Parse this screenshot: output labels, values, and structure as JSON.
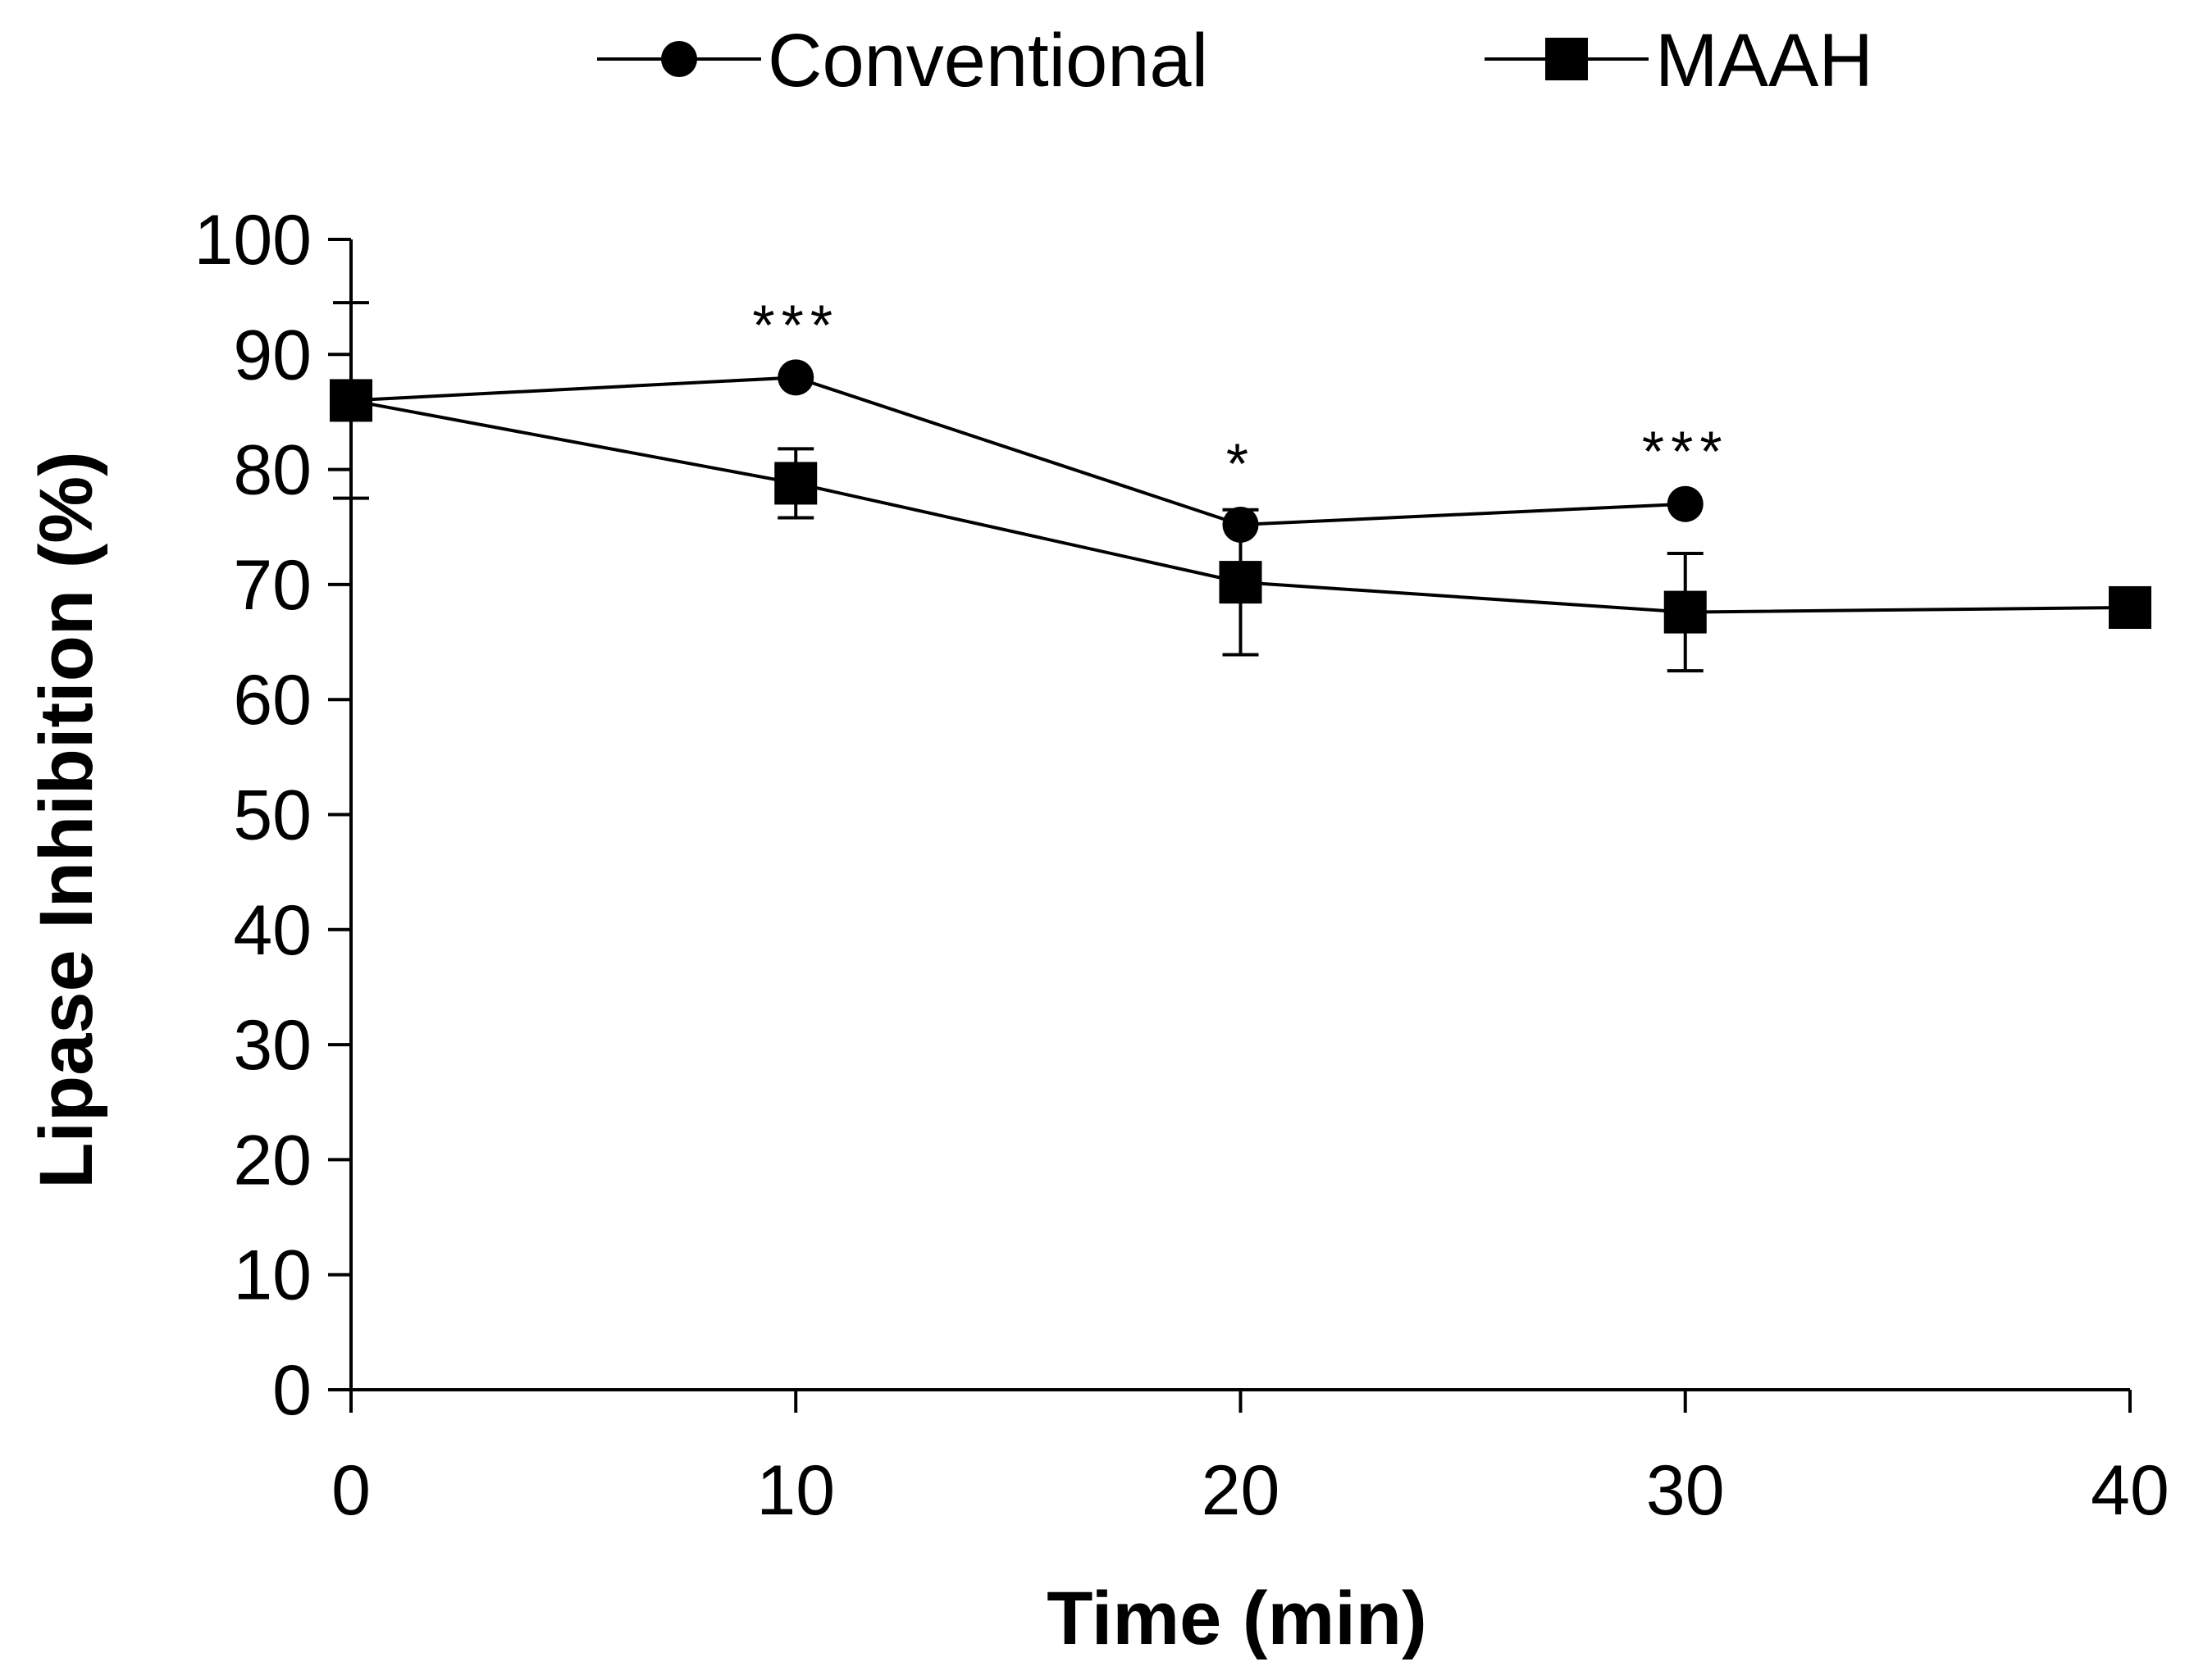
{
  "chart_data": {
    "type": "line",
    "xlabel": "Time (min)",
    "ylabel": "Lipase Inhibition (%)",
    "xlim": [
      0,
      40
    ],
    "ylim": [
      0,
      100
    ],
    "x_ticks": [
      "0",
      "10",
      "20",
      "30",
      "40"
    ],
    "y_ticks": [
      "0",
      "10",
      "20",
      "30",
      "40",
      "50",
      "60",
      "70",
      "80",
      "90",
      "100"
    ],
    "grid": false,
    "legend_position": "top",
    "series": [
      {
        "name": "Conventional",
        "marker": "circle",
        "color": "#000000",
        "points": [
          {
            "x": 0,
            "y": 86,
            "err": 8.5
          },
          {
            "x": 10,
            "y": 88
          },
          {
            "x": 20,
            "y": 75.2
          },
          {
            "x": 30,
            "y": 77
          }
        ]
      },
      {
        "name": "MAAH",
        "marker": "square",
        "color": "#000000",
        "points": [
          {
            "x": 0,
            "y": 86
          },
          {
            "x": 10,
            "y": 78.8,
            "err": 3
          },
          {
            "x": 20,
            "y": 70.2,
            "err": 6.3
          },
          {
            "x": 30,
            "y": 67.6,
            "err": 5.1
          },
          {
            "x": 40,
            "y": 68
          }
        ]
      }
    ],
    "annotations": [
      {
        "text": "***",
        "x": 10
      },
      {
        "text": "*",
        "x": 20
      },
      {
        "text": "***",
        "x": 30
      }
    ]
  }
}
